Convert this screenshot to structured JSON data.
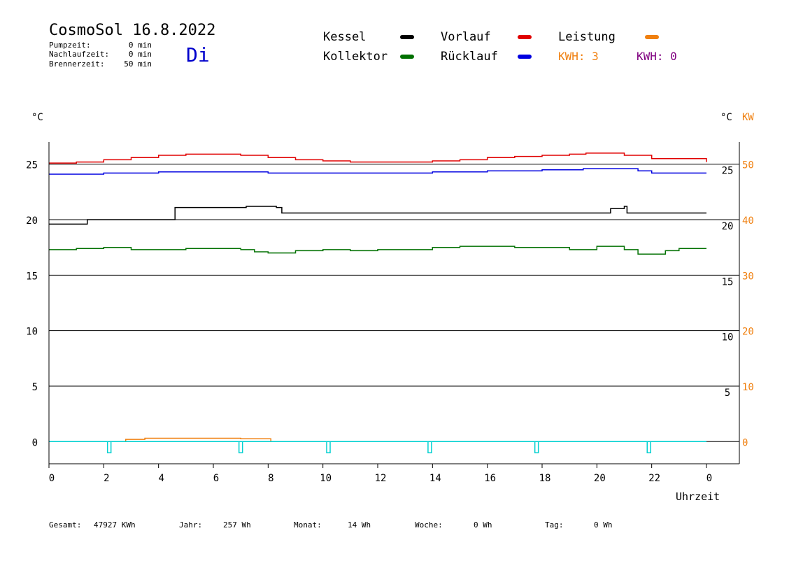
{
  "header": {
    "title": "CosmoSol 16.8.2022",
    "day": "Di",
    "stats": [
      {
        "label": "Pumpzeit:",
        "value": "0 min"
      },
      {
        "label": "Nachlaufzeit:",
        "value": "0 min"
      },
      {
        "label": "Brennerzeit:",
        "value": "50 min"
      }
    ]
  },
  "legend": {
    "items": [
      {
        "label": "Kessel",
        "color": "#000000"
      },
      {
        "label": "Vorlauf",
        "color": "#e00000"
      },
      {
        "label": "Leistung",
        "color": "#f08010"
      },
      {
        "label": "Kollektor",
        "color": "#007000"
      },
      {
        "label": "Rücklauf",
        "color": "#0000e0"
      }
    ],
    "kwh_orange": "KWH: 3",
    "kwh_purple": "KWH: 0",
    "kwh_orange_color": "#f08010",
    "kwh_purple_color": "#800080"
  },
  "axis_units": {
    "left": "°C",
    "right_temp": "°C",
    "right_power": "KW",
    "x_title": "Uhrzeit"
  },
  "footer": [
    {
      "label": "Gesamt:",
      "value": "47927 KWh"
    },
    {
      "label": "Jahr:",
      "value": "257 Wh"
    },
    {
      "label": "Monat:",
      "value": "14 Wh"
    },
    {
      "label": "Woche:",
      "value": "0 Wh"
    },
    {
      "label": "Tag:",
      "value": "0 Wh"
    }
  ],
  "chart_data": {
    "type": "line",
    "xlabel": "Uhrzeit",
    "xlim": [
      0,
      24
    ],
    "ylim": [
      -2,
      27
    ],
    "y2lim": [
      -4,
      54
    ],
    "x_ticks": [
      "0",
      "2",
      "4",
      "6",
      "8",
      "10",
      "12",
      "14",
      "16",
      "18",
      "20",
      "22",
      "0"
    ],
    "y_ticks_left": [
      "0",
      "5",
      "10",
      "15",
      "20",
      "25"
    ],
    "y_ticks_right_temp": [
      "5",
      "10",
      "15",
      "20",
      "25"
    ],
    "y_ticks_right_power": [
      "0",
      "10",
      "20",
      "30",
      "40",
      "50"
    ],
    "series": [
      {
        "name": "Vorlauf",
        "color": "#e00000",
        "axis": "left",
        "x": [
          0,
          1,
          2,
          3,
          4,
          5,
          6,
          7,
          8,
          9,
          10,
          11,
          12,
          13,
          14,
          15,
          16,
          17,
          18,
          19,
          19.6,
          20.5,
          21,
          22,
          24
        ],
        "y": [
          25.1,
          25.2,
          25.4,
          25.6,
          25.8,
          25.9,
          25.9,
          25.8,
          25.6,
          25.4,
          25.3,
          25.2,
          25.2,
          25.2,
          25.3,
          25.4,
          25.6,
          25.7,
          25.8,
          25.9,
          26.0,
          26.0,
          25.8,
          25.5,
          25.2
        ]
      },
      {
        "name": "Rücklauf",
        "color": "#0000e0",
        "axis": "left",
        "x": [
          0,
          2,
          4,
          6,
          8,
          10,
          12,
          14,
          16,
          18,
          19.5,
          20.5,
          21.5,
          22,
          24
        ],
        "y": [
          24.1,
          24.2,
          24.3,
          24.3,
          24.2,
          24.2,
          24.2,
          24.3,
          24.4,
          24.5,
          24.6,
          24.6,
          24.4,
          24.2,
          24.2
        ]
      },
      {
        "name": "Kessel",
        "color": "#000000",
        "axis": "left",
        "x": [
          0,
          1.4,
          3.5,
          4.6,
          7.2,
          8.3,
          8.5,
          19.7,
          20.5,
          21,
          21.1,
          24
        ],
        "y": [
          19.6,
          20.0,
          20.0,
          21.1,
          21.2,
          21.1,
          20.6,
          20.6,
          21.0,
          21.2,
          20.6,
          20.6
        ]
      },
      {
        "name": "Kollektor",
        "color": "#007000",
        "axis": "left",
        "x": [
          0,
          1,
          2,
          3,
          4,
          5,
          6,
          7,
          7.5,
          8,
          9,
          10,
          11,
          12,
          13,
          14,
          15,
          16,
          17,
          18,
          19,
          20,
          21,
          21.5,
          22,
          22.5,
          23,
          24
        ],
        "y": [
          17.3,
          17.4,
          17.5,
          17.3,
          17.3,
          17.4,
          17.4,
          17.3,
          17.1,
          17.0,
          17.2,
          17.3,
          17.2,
          17.3,
          17.3,
          17.5,
          17.6,
          17.6,
          17.5,
          17.5,
          17.3,
          17.6,
          17.3,
          16.9,
          16.9,
          17.2,
          17.4,
          17.4
        ]
      },
      {
        "name": "Leistung",
        "color": "#f08010",
        "axis": "right",
        "x": [
          0,
          2.8,
          2.8,
          3.5,
          5,
          7,
          8,
          8.1,
          8.1,
          24
        ],
        "y": [
          0,
          0,
          0.4,
          0.6,
          0.6,
          0.5,
          0.5,
          0.5,
          0,
          0
        ]
      }
    ],
    "pump_pulses": {
      "name": "Pumpe",
      "color": "#00d0d0",
      "x": [
        2.2,
        7.0,
        10.2,
        13.9,
        17.8,
        21.9
      ]
    }
  }
}
